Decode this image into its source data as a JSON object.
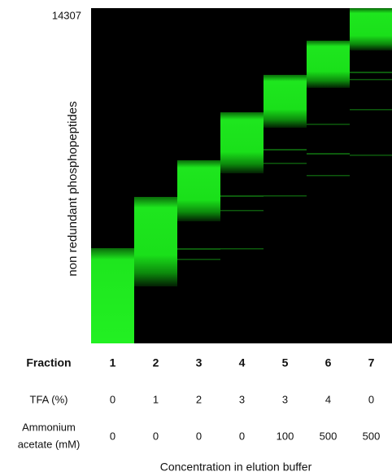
{
  "figure": {
    "top_label": "14307",
    "y_axis_label": "non redundant phosphopeptides",
    "rows": [
      {
        "label": "Fraction",
        "values": [
          1,
          2,
          3,
          4,
          5,
          6,
          7
        ]
      },
      {
        "label": "TFA (%)",
        "values": [
          0,
          1,
          2,
          3,
          3,
          4,
          0
        ]
      },
      {
        "label_lines": [
          "Ammonium",
          "acetate (mM)"
        ],
        "values": [
          0,
          0,
          0,
          0,
          100,
          500,
          500
        ]
      }
    ],
    "caption": "Concentration in elution buffer"
  }
}
